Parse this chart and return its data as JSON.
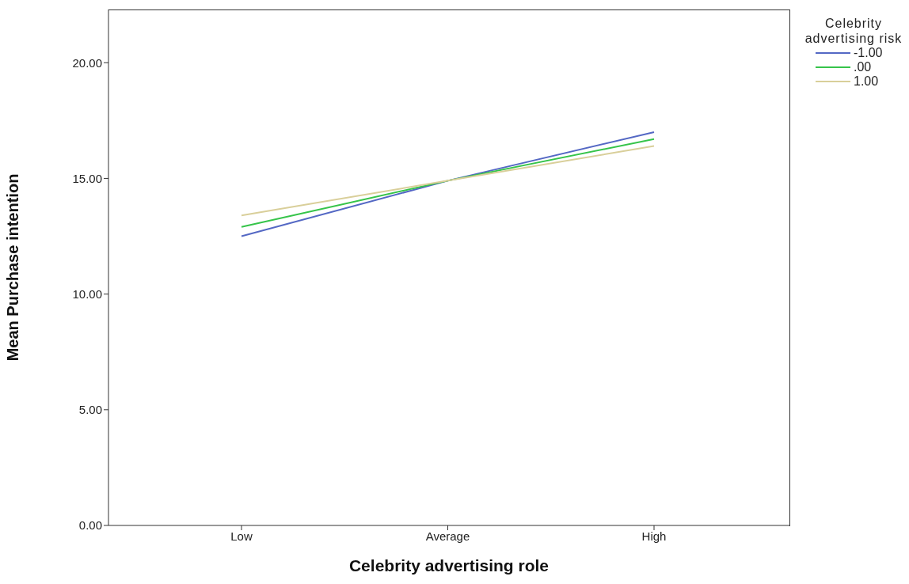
{
  "chart_data": {
    "type": "line",
    "xlabel": "Celebrity advertising role",
    "ylabel": "Mean Purchase intention",
    "legend_title": "Celebrity advertising risk",
    "categories": [
      "Low",
      "Average",
      "High"
    ],
    "series": [
      {
        "name": "-1.00",
        "color": "#5468c4",
        "values": [
          12.5,
          14.9,
          17.0
        ]
      },
      {
        "name": ".00",
        "color": "#36c44a",
        "values": [
          12.9,
          14.9,
          16.7
        ]
      },
      {
        "name": "1.00",
        "color": "#d9cf9a",
        "values": [
          13.4,
          14.9,
          16.4
        ]
      }
    ],
    "ylim": [
      0,
      22.3
    ],
    "yticks": [
      {
        "value": 0,
        "label": "0.00"
      },
      {
        "value": 5,
        "label": "5.00"
      },
      {
        "value": 10,
        "label": "10.00"
      },
      {
        "value": 15,
        "label": "15.00"
      },
      {
        "value": 20,
        "label": "20.00"
      }
    ],
    "grid": false,
    "legend": "right",
    "marker": "none",
    "line_style": "solid"
  }
}
